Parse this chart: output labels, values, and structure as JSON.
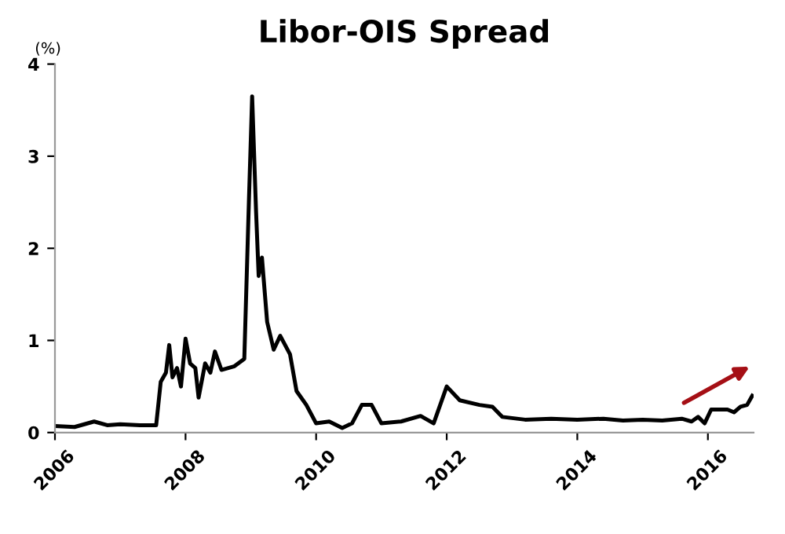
{
  "chart_data": {
    "type": "line",
    "title": "Libor-OIS Spread",
    "ylabel": "(%)",
    "x": [
      2006.0,
      2006.3,
      2006.6,
      2006.8,
      2007.0,
      2007.3,
      2007.55,
      2007.62,
      2007.7,
      2007.75,
      2007.8,
      2007.87,
      2007.93,
      2008.0,
      2008.07,
      2008.15,
      2008.2,
      2008.3,
      2008.38,
      2008.45,
      2008.55,
      2008.75,
      2008.9,
      2008.97,
      2009.02,
      2009.08,
      2009.12,
      2009.17,
      2009.25,
      2009.35,
      2009.45,
      2009.6,
      2009.7,
      2009.85,
      2010.0,
      2010.2,
      2010.4,
      2010.55,
      2010.7,
      2010.85,
      2011.0,
      2011.3,
      2011.6,
      2011.8,
      2011.9,
      2012.0,
      2012.2,
      2012.5,
      2012.7,
      2012.85,
      2013.2,
      2013.6,
      2014.0,
      2014.4,
      2014.7,
      2015.0,
      2015.3,
      2015.6,
      2015.75,
      2015.85,
      2015.95,
      2016.05,
      2016.3,
      2016.4,
      2016.5,
      2016.6,
      2016.68
    ],
    "series": [
      {
        "color": "#000000",
        "values": [
          0.07,
          0.06,
          0.12,
          0.08,
          0.09,
          0.08,
          0.08,
          0.55,
          0.65,
          0.95,
          0.6,
          0.7,
          0.5,
          1.02,
          0.75,
          0.7,
          0.38,
          0.75,
          0.65,
          0.88,
          0.68,
          0.72,
          0.8,
          2.5,
          3.65,
          2.4,
          1.7,
          1.9,
          1.2,
          0.9,
          1.05,
          0.85,
          0.45,
          0.3,
          0.1,
          0.12,
          0.05,
          0.1,
          0.3,
          0.3,
          0.1,
          0.12,
          0.18,
          0.1,
          0.3,
          0.5,
          0.35,
          0.3,
          0.28,
          0.17,
          0.14,
          0.15,
          0.14,
          0.15,
          0.13,
          0.14,
          0.13,
          0.15,
          0.12,
          0.17,
          0.1,
          0.25,
          0.25,
          0.22,
          0.28,
          0.3,
          0.4
        ]
      }
    ],
    "xlim": [
      2006,
      2016.7
    ],
    "xticks": [
      2006,
      2008,
      2010,
      2012,
      2014,
      2016
    ],
    "ylim": [
      0,
      4
    ],
    "yticks": [
      0,
      1,
      2,
      3,
      4
    ],
    "grid": false,
    "marker": "none",
    "line_style": "solid"
  }
}
